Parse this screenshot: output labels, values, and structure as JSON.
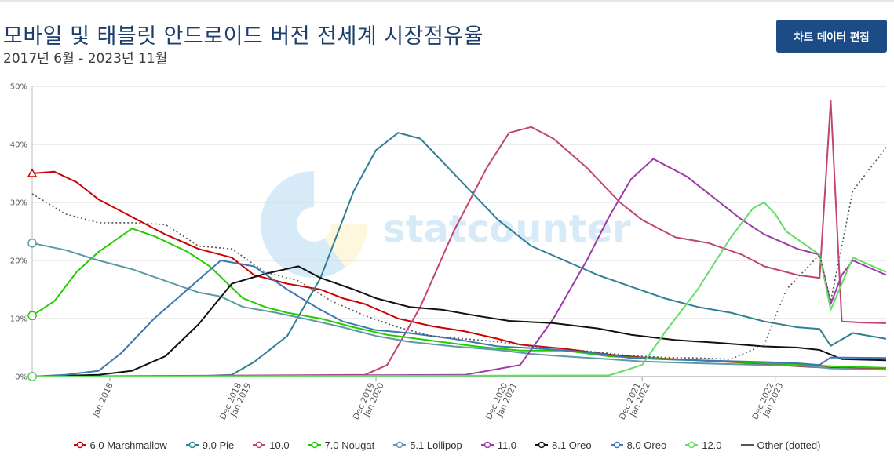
{
  "page": {
    "title": "모바일 및 태블릿 안드로이드 버전 전세계 시장점유율",
    "subtitle": "2017년 6월 - 2023년 11월",
    "edit_button": "차트 데이터 편집"
  },
  "watermark": "statcounter",
  "chart_data": {
    "type": "line",
    "x_start": "2017-06",
    "x_end": "2023-11",
    "ylim": [
      0,
      50
    ],
    "y_ticks": [
      "0%",
      "10%",
      "20%",
      "30%",
      "40%",
      "50%"
    ],
    "x_ticks": [
      {
        "date": "2018-01",
        "label": [
          "Jan 2018"
        ]
      },
      {
        "date": "2019-01",
        "label": [
          "Dec 2018",
          "Jan 2019"
        ]
      },
      {
        "date": "2020-01",
        "label": [
          "Dec 2019",
          "Jan 2020"
        ]
      },
      {
        "date": "2021-01",
        "label": [
          "Dec 2020",
          "Jan 2021"
        ]
      },
      {
        "date": "2022-01",
        "label": [
          "Dec 2021",
          "Jan 2022"
        ]
      },
      {
        "date": "2023-01",
        "label": [
          "Dec 2022",
          "Jan 2023"
        ]
      }
    ],
    "grid": true,
    "legend_position": "bottom",
    "series": [
      {
        "name": "6.0 Marshmallow",
        "color": "#cc0000",
        "marker": "triangle",
        "points": [
          [
            "2017-06",
            35
          ],
          [
            "2017-08",
            35.3
          ],
          [
            "2017-10",
            33.5
          ],
          [
            "2017-12",
            30.5
          ],
          [
            "2018-03",
            27.5
          ],
          [
            "2018-06",
            24.5
          ],
          [
            "2018-09",
            22
          ],
          [
            "2018-12",
            20.5
          ],
          [
            "2019-02",
            17.5
          ],
          [
            "2019-05",
            16
          ],
          [
            "2019-08",
            15
          ],
          [
            "2019-10",
            13.5
          ],
          [
            "2019-12",
            12.5
          ],
          [
            "2020-03",
            10
          ],
          [
            "2020-06",
            8.7
          ],
          [
            "2020-09",
            7.8
          ],
          [
            "2020-12",
            6.5
          ],
          [
            "2021-02",
            5.5
          ],
          [
            "2021-06",
            4.8
          ],
          [
            "2021-10",
            3.8
          ],
          [
            "2022-01",
            3.3
          ],
          [
            "2022-06",
            2.8
          ],
          [
            "2022-12",
            2.2
          ],
          [
            "2023-03",
            1.8
          ],
          [
            "2023-06",
            1.5
          ],
          [
            "2023-11",
            1.3
          ]
        ]
      },
      {
        "name": "9.0 Pie",
        "color": "#2f7f94",
        "marker": "circle",
        "points": [
          [
            "2017-06",
            0
          ],
          [
            "2018-08",
            0
          ],
          [
            "2018-12",
            0.3
          ],
          [
            "2019-02",
            2.5
          ],
          [
            "2019-05",
            7
          ],
          [
            "2019-08",
            17
          ],
          [
            "2019-11",
            32
          ],
          [
            "2020-01",
            39
          ],
          [
            "2020-03",
            42
          ],
          [
            "2020-05",
            41
          ],
          [
            "2020-07",
            37
          ],
          [
            "2020-09",
            33
          ],
          [
            "2020-12",
            27
          ],
          [
            "2021-03",
            22.5
          ],
          [
            "2021-06",
            20
          ],
          [
            "2021-09",
            17.5
          ],
          [
            "2021-12",
            15.5
          ],
          [
            "2022-03",
            13.5
          ],
          [
            "2022-06",
            12
          ],
          [
            "2022-09",
            11
          ],
          [
            "2022-12",
            9.5
          ],
          [
            "2023-03",
            8.5
          ],
          [
            "2023-05",
            8.2
          ],
          [
            "2023-06",
            5.3
          ],
          [
            "2023-08",
            7.5
          ],
          [
            "2023-11",
            6.5
          ]
        ]
      },
      {
        "name": "10.0",
        "color": "#c04474",
        "marker": "circle",
        "points": [
          [
            "2017-06",
            0
          ],
          [
            "2019-12",
            0.3
          ],
          [
            "2020-02",
            2
          ],
          [
            "2020-05",
            12
          ],
          [
            "2020-08",
            25
          ],
          [
            "2020-11",
            36
          ],
          [
            "2021-01",
            42
          ],
          [
            "2021-03",
            43
          ],
          [
            "2021-05",
            41
          ],
          [
            "2021-08",
            36
          ],
          [
            "2021-11",
            30
          ],
          [
            "2022-01",
            27
          ],
          [
            "2022-04",
            24
          ],
          [
            "2022-07",
            23
          ],
          [
            "2022-10",
            21
          ],
          [
            "2022-12",
            19
          ],
          [
            "2023-03",
            17.5
          ],
          [
            "2023-05",
            17
          ],
          [
            "2023-06",
            47.5
          ],
          [
            "2023-07",
            9.5
          ],
          [
            "2023-09",
            9.3
          ],
          [
            "2023-11",
            9.2
          ]
        ]
      },
      {
        "name": "7.0 Nougat",
        "color": "#22cc00",
        "marker": "hexagon",
        "points": [
          [
            "2017-06",
            10.5
          ],
          [
            "2017-08",
            13
          ],
          [
            "2017-10",
            18
          ],
          [
            "2017-12",
            21.5
          ],
          [
            "2018-03",
            25.5
          ],
          [
            "2018-05",
            24.2
          ],
          [
            "2018-08",
            21.5
          ],
          [
            "2018-10",
            19
          ],
          [
            "2019-01",
            13.5
          ],
          [
            "2019-03",
            12
          ],
          [
            "2019-05",
            11
          ],
          [
            "2019-08",
            10
          ],
          [
            "2019-11",
            8.5
          ],
          [
            "2020-02",
            7.2
          ],
          [
            "2020-06",
            6.2
          ],
          [
            "2020-10",
            5.2
          ],
          [
            "2021-02",
            4.5
          ],
          [
            "2021-06",
            4.5
          ],
          [
            "2021-10",
            3.5
          ],
          [
            "2022-01",
            3.2
          ],
          [
            "2022-06",
            2.8
          ],
          [
            "2022-12",
            2.3
          ],
          [
            "2023-03",
            2.1
          ],
          [
            "2023-06",
            1.8
          ],
          [
            "2023-11",
            1.5
          ]
        ]
      },
      {
        "name": "5.1 Lollipop",
        "color": "#5d9aa3",
        "marker": "circle",
        "points": [
          [
            "2017-06",
            23
          ],
          [
            "2017-09",
            21.8
          ],
          [
            "2017-12",
            20
          ],
          [
            "2018-03",
            18.5
          ],
          [
            "2018-06",
            16.5
          ],
          [
            "2018-09",
            14.5
          ],
          [
            "2018-11",
            13.8
          ],
          [
            "2019-01",
            12
          ],
          [
            "2019-04",
            11
          ],
          [
            "2019-07",
            9.8
          ],
          [
            "2019-10",
            8.5
          ],
          [
            "2020-01",
            7
          ],
          [
            "2020-04",
            6
          ],
          [
            "2020-08",
            5.2
          ],
          [
            "2020-12",
            4.6
          ],
          [
            "2021-03",
            3.9
          ],
          [
            "2021-06",
            3.5
          ],
          [
            "2021-10",
            3
          ],
          [
            "2022-01",
            2.6
          ],
          [
            "2022-06",
            2.3
          ],
          [
            "2022-12",
            2
          ],
          [
            "2023-04",
            1.8
          ],
          [
            "2023-06",
            1.4
          ],
          [
            "2023-11",
            1.2
          ]
        ]
      },
      {
        "name": "11.0",
        "color": "#9b3ca7",
        "marker": "circle",
        "points": [
          [
            "2017-06",
            0
          ],
          [
            "2020-09",
            0.3
          ],
          [
            "2021-02",
            2
          ],
          [
            "2021-05",
            10
          ],
          [
            "2021-08",
            20
          ],
          [
            "2021-10",
            27.5
          ],
          [
            "2021-12",
            34
          ],
          [
            "2022-02",
            37.5
          ],
          [
            "2022-05",
            34.5
          ],
          [
            "2022-08",
            30
          ],
          [
            "2022-10",
            27
          ],
          [
            "2022-12",
            24.5
          ],
          [
            "2023-03",
            22
          ],
          [
            "2023-05",
            21
          ],
          [
            "2023-06",
            12.5
          ],
          [
            "2023-07",
            17.5
          ],
          [
            "2023-08",
            20
          ],
          [
            "2023-11",
            17.5
          ]
        ]
      },
      {
        "name": "8.1 Oreo",
        "color": "#111111",
        "marker": "circle",
        "points": [
          [
            "2017-06",
            0
          ],
          [
            "2017-12",
            0.3
          ],
          [
            "2018-03",
            1
          ],
          [
            "2018-06",
            3.5
          ],
          [
            "2018-09",
            9
          ],
          [
            "2018-12",
            16
          ],
          [
            "2019-03",
            17.7
          ],
          [
            "2019-06",
            19
          ],
          [
            "2019-08",
            17
          ],
          [
            "2019-11",
            15
          ],
          [
            "2020-01",
            13.5
          ],
          [
            "2020-04",
            12
          ],
          [
            "2020-07",
            11.5
          ],
          [
            "2020-10",
            10.5
          ],
          [
            "2021-01",
            9.6
          ],
          [
            "2021-05",
            9.2
          ],
          [
            "2021-09",
            8.3
          ],
          [
            "2021-12",
            7.2
          ],
          [
            "2022-04",
            6.3
          ],
          [
            "2022-08",
            5.8
          ],
          [
            "2022-12",
            5.2
          ],
          [
            "2023-03",
            5
          ],
          [
            "2023-05",
            4.6
          ],
          [
            "2023-07",
            3
          ],
          [
            "2023-11",
            2.8
          ]
        ]
      },
      {
        "name": "8.0 Oreo",
        "color": "#3f77b2",
        "marker": "circle",
        "points": [
          [
            "2017-06",
            0
          ],
          [
            "2017-09",
            0.3
          ],
          [
            "2017-12",
            1
          ],
          [
            "2018-02",
            4
          ],
          [
            "2018-05",
            10
          ],
          [
            "2018-08",
            15
          ],
          [
            "2018-11",
            20
          ],
          [
            "2019-02",
            19
          ],
          [
            "2019-05",
            15
          ],
          [
            "2019-08",
            11.5
          ],
          [
            "2019-10",
            9.5
          ],
          [
            "2020-01",
            8
          ],
          [
            "2020-04",
            7.5
          ],
          [
            "2020-08",
            6.5
          ],
          [
            "2020-12",
            5.2
          ],
          [
            "2021-04",
            4.8
          ],
          [
            "2021-08",
            4.2
          ],
          [
            "2021-12",
            3.2
          ],
          [
            "2022-04",
            2.9
          ],
          [
            "2022-08",
            2.7
          ],
          [
            "2022-12",
            2.5
          ],
          [
            "2023-03",
            2.3
          ],
          [
            "2023-05",
            2
          ],
          [
            "2023-06",
            3.3
          ],
          [
            "2023-11",
            3.2
          ]
        ]
      },
      {
        "name": "12.0",
        "color": "#66dd66",
        "marker": "circle",
        "points": [
          [
            "2017-06",
            0
          ],
          [
            "2021-10",
            0.2
          ],
          [
            "2022-01",
            2
          ],
          [
            "2022-03",
            7.5
          ],
          [
            "2022-06",
            15
          ],
          [
            "2022-09",
            24
          ],
          [
            "2022-11",
            29
          ],
          [
            "2022-12",
            30
          ],
          [
            "2023-01",
            28
          ],
          [
            "2023-02",
            25
          ],
          [
            "2023-05",
            21
          ],
          [
            "2023-06",
            11.5
          ],
          [
            "2023-08",
            20.5
          ],
          [
            "2023-11",
            18
          ]
        ]
      },
      {
        "name": "Other (dotted)",
        "color": "#555555",
        "marker": "none",
        "dotted": true,
        "points": [
          [
            "2017-06",
            31.5
          ],
          [
            "2017-09",
            28
          ],
          [
            "2017-12",
            26.5
          ],
          [
            "2018-03",
            26.5
          ],
          [
            "2018-06",
            26.2
          ],
          [
            "2018-09",
            22.5
          ],
          [
            "2018-12",
            22
          ],
          [
            "2019-03",
            18
          ],
          [
            "2019-06",
            16.5
          ],
          [
            "2019-09",
            13
          ],
          [
            "2019-12",
            10.5
          ],
          [
            "2020-03",
            8.5
          ],
          [
            "2020-06",
            7
          ],
          [
            "2020-09",
            6.5
          ],
          [
            "2020-12",
            6
          ],
          [
            "2021-03",
            5.2
          ],
          [
            "2021-06",
            4.8
          ],
          [
            "2021-09",
            4.2
          ],
          [
            "2021-12",
            3.6
          ],
          [
            "2022-03",
            3.3
          ],
          [
            "2022-06",
            3.2
          ],
          [
            "2022-09",
            3
          ],
          [
            "2022-12",
            5.5
          ],
          [
            "2023-02",
            15
          ],
          [
            "2023-05",
            21
          ],
          [
            "2023-06",
            13
          ],
          [
            "2023-08",
            32
          ],
          [
            "2023-11",
            39.5
          ]
        ]
      }
    ]
  }
}
